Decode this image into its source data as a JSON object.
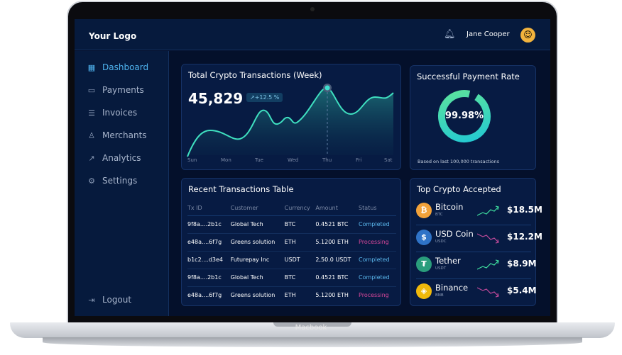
{
  "device": {
    "brand": "Macbook"
  },
  "header": {
    "logo": "Your Logo",
    "user_name": "Jane Cooper",
    "bell_icon": "bell-icon"
  },
  "sidebar": {
    "items": [
      {
        "label": "Dashboard",
        "icon": "grid-icon",
        "active": true
      },
      {
        "label": "Payments",
        "icon": "wallet-icon"
      },
      {
        "label": "Invoices",
        "icon": "document-icon"
      },
      {
        "label": "Merchants",
        "icon": "user-icon"
      },
      {
        "label": "Analytics",
        "icon": "chart-icon"
      },
      {
        "label": "Settings",
        "icon": "gear-icon"
      }
    ],
    "logout": "Logout"
  },
  "transactions_chart": {
    "title": "Total Crypto Transactions (Week)",
    "total": "45,829",
    "change": "+12.5 %",
    "days": [
      "Sun",
      "Mon",
      "Tue",
      "Wed",
      "Thu",
      "Fri",
      "Sat"
    ],
    "highlighted_day": "Thu",
    "line_color": "#3fe0c0"
  },
  "payment_rate": {
    "title": "Successful Payment Rate",
    "value": "99.98%",
    "fraction": 0.9998,
    "note": "Based on last 100,000 transactions"
  },
  "table": {
    "title": "Recent Transactions Table",
    "columns": [
      "Tx ID",
      "Customer",
      "Currency",
      "Amount",
      "Status"
    ],
    "rows": [
      [
        "9f8a....2b1c",
        "Global Tech",
        "BTC",
        "0.4521 BTC",
        "Completed"
      ],
      [
        "e48a....6f7g",
        "Greens solution",
        "ETH",
        "5.1200 ETH",
        "Processing"
      ],
      [
        "b1c2....d3e4",
        "Futurepay Inc",
        "USDT",
        "2,50.0 USDT",
        "Completed"
      ],
      [
        "9f8a....2b1c",
        "Global Tech",
        "BTC",
        "0.4521 BTC",
        "Completed"
      ],
      [
        "e48a....6f7g",
        "Greens solution",
        "ETH",
        "5.1200 ETH",
        "Processing"
      ]
    ],
    "status_colors": {
      "Completed": "#5bb8ee",
      "Processing": "#d9479a"
    }
  },
  "top_crypto": {
    "title": "Top Crypto Accepted",
    "items": [
      {
        "name": "Bitcoin",
        "symbol": "BTC",
        "value": "$18.5M",
        "trend": "up",
        "color": "#f2a23a",
        "glyph": "₿"
      },
      {
        "name": "USD Coin",
        "symbol": "USDC",
        "value": "$12.2M",
        "trend": "down",
        "color": "#2f73c7",
        "glyph": "$"
      },
      {
        "name": "Tether",
        "symbol": "USDT",
        "value": "$8.9M",
        "trend": "up",
        "color": "#2a9d7c",
        "glyph": "₮"
      },
      {
        "name": "Binance",
        "symbol": "BNB",
        "value": "$5.4M",
        "trend": "down",
        "color": "#f0b90b",
        "glyph": "◈"
      }
    ]
  }
}
